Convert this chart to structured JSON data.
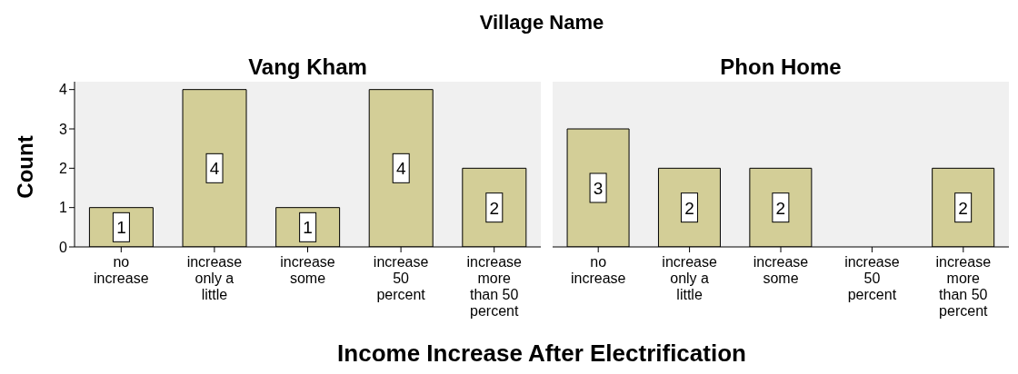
{
  "chart_data": [
    {
      "type": "bar",
      "title": "Vang Kham",
      "annotations": [
        "Village Name"
      ],
      "xlabel": "Income Increase After Electrification",
      "ylabel": "Count",
      "categories": [
        "no increase",
        "increase only a little",
        "increase some",
        "increase 50 percent",
        "increase more than 50 percent"
      ],
      "values": [
        1,
        4,
        1,
        4,
        2
      ],
      "color": "#d3ce97",
      "ylim": [
        0,
        4.2
      ],
      "yticks": [
        0,
        1,
        2,
        3,
        4
      ],
      "data_labels": true
    },
    {
      "type": "bar",
      "title": "Phon Home",
      "categories": [
        "no increase",
        "increase only a little",
        "increase some",
        "increase 50 percent",
        "increase more than 50 percent"
      ],
      "values": [
        3,
        2,
        2,
        0,
        2
      ],
      "value_labels": [
        "3",
        "2",
        "2",
        null,
        "2"
      ],
      "color": "#d3ce97",
      "ylim": [
        0,
        4.2
      ],
      "yticks": [
        0,
        1,
        2,
        3,
        4
      ],
      "tick_labels": "x"
    }
  ]
}
